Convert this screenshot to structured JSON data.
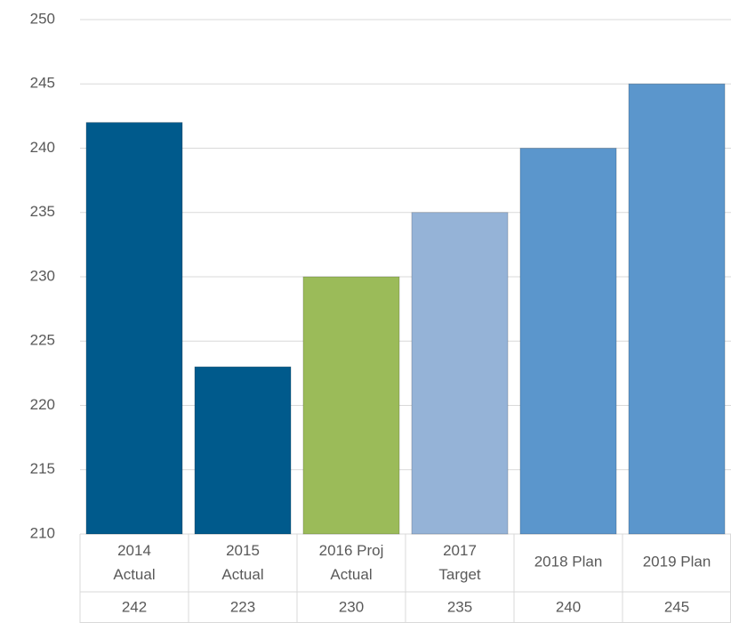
{
  "chart_data": {
    "type": "bar",
    "categories": [
      "2014 Actual",
      "2015 Actual",
      "2016 Proj Actual",
      "2017 Target",
      "2018 Plan",
      "2019 Plan"
    ],
    "values": [
      242,
      223,
      230,
      235,
      240,
      245
    ],
    "colors": [
      "#005a8c",
      "#005a8c",
      "#9bbb59",
      "#95b3d7",
      "#5b96cc",
      "#5b96cc"
    ],
    "ylim": [
      210,
      250
    ],
    "yticks": [
      210,
      215,
      220,
      225,
      230,
      235,
      240,
      245,
      250
    ],
    "grid": true,
    "data_table": true
  }
}
